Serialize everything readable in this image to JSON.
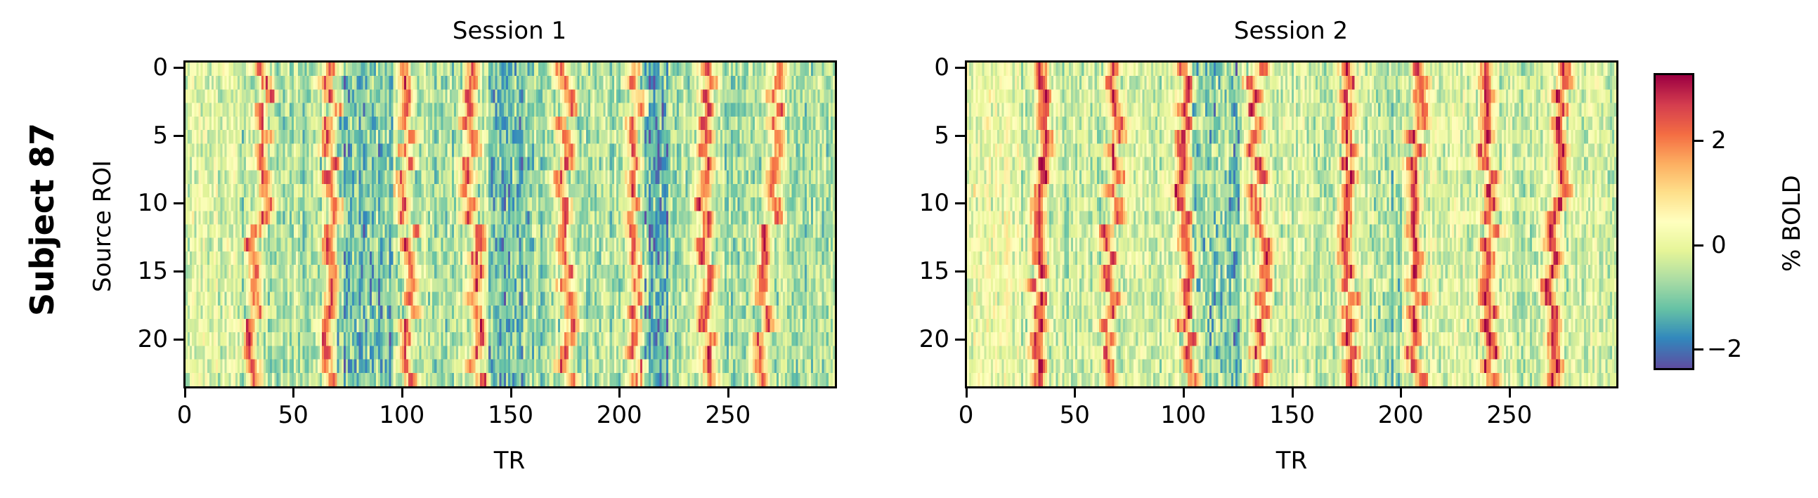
{
  "figure": {
    "row_label": "Subject 87",
    "colorbar": {
      "label": "% BOLD",
      "colormap": "Spectral_r",
      "vmin": -2.4,
      "vmax": 3.3,
      "ticks": [
        {
          "value": 2,
          "label": "2"
        },
        {
          "value": 0,
          "label": "0"
        },
        {
          "value": -2,
          "label": "−2"
        }
      ]
    }
  },
  "chart_data": [
    {
      "type": "heatmap",
      "title": "Session 1",
      "xlabel": "TR",
      "ylabel": "Source ROI",
      "xlim": [
        -0.5,
        299.5
      ],
      "ylim": [
        23.5,
        -0.5
      ],
      "n_rows": 24,
      "n_cols": 300,
      "xticks": [
        0,
        50,
        100,
        150,
        200,
        250
      ],
      "yticks": [
        0,
        5,
        10,
        15,
        20
      ],
      "colormap": "Spectral_r",
      "value_range": [
        -2.4,
        3.3
      ],
      "event_peaks_TR": {
        "rows_0_11": [
          36,
          67,
          101,
          130,
          175,
          208,
          240,
          272
        ],
        "rows_12_23": [
          31,
          66,
          103,
          134,
          176,
          207,
          241,
          267
        ]
      },
      "baseline_mean": -0.6,
      "notes": "Stripes of high %BOLD (~2-3) recur every ~33 TR; background mostly -1 to 0 with deeper blue (~-2) regions near TR 70-160 and 210-220."
    },
    {
      "type": "heatmap",
      "title": "Session 2",
      "xlabel": "TR",
      "ylabel": "",
      "xlim": [
        -0.5,
        299.5
      ],
      "ylim": [
        23.5,
        -0.5
      ],
      "n_rows": 24,
      "n_cols": 300,
      "xticks": [
        0,
        50,
        100,
        150,
        200,
        250
      ],
      "yticks": [
        0,
        5,
        10,
        15,
        20
      ],
      "colormap": "Spectral_r",
      "value_range": [
        -2.4,
        3.3
      ],
      "event_peaks_TR": {
        "rows_0_11": [
          35,
          68,
          99,
          133,
          176,
          208,
          240,
          273
        ],
        "rows_12_23": [
          32,
          66,
          102,
          136,
          176,
          207,
          241,
          270
        ]
      },
      "baseline_mean": -0.3,
      "notes": "Similar stripe structure to Session 1, generally less negative background; bluer band near TR 105-125."
    }
  ],
  "axes_text": {
    "session1": {
      "title": "Session 1",
      "xlabel": "TR",
      "ylabel": "Source ROI"
    },
    "session2": {
      "title": "Session 2",
      "xlabel": "TR"
    },
    "xtick_labels": [
      "0",
      "50",
      "100",
      "150",
      "200",
      "250"
    ],
    "ytick_labels": [
      "0",
      "5",
      "10",
      "15",
      "20"
    ]
  }
}
